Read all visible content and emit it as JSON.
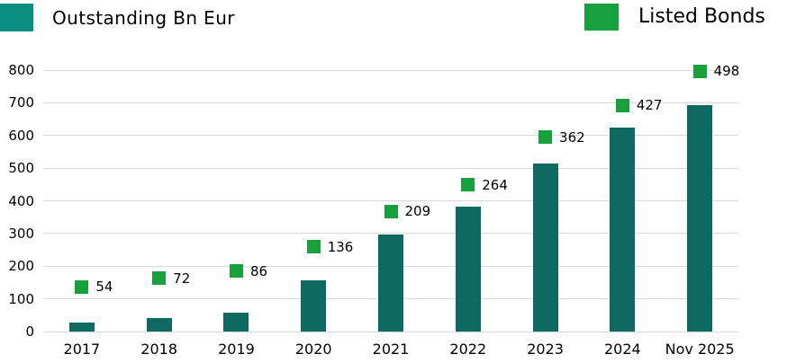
{
  "legend": {
    "outstanding": {
      "label": "Outstanding Bn Eur",
      "swatch_color": "#0b8f80"
    },
    "listed_bonds": {
      "label": "Listed Bonds",
      "swatch_color": "#18a03c"
    }
  },
  "colors": {
    "bar": "#0e6a60",
    "marker": "#18a03c",
    "grid": "#d9d9d9",
    "text": "#000000",
    "background": "#ffffff"
  },
  "chart_data": {
    "type": "bar",
    "title": "",
    "categories": [
      "2017",
      "2018",
      "2019",
      "2020",
      "2021",
      "2022",
      "2023",
      "2024",
      "Nov 2025"
    ],
    "series": [
      {
        "name": "Outstanding Bn Eur",
        "type": "bar",
        "color": "#0e6a60",
        "values": [
          27,
          40,
          57,
          158,
          297,
          381,
          515,
          625,
          693
        ],
        "values_estimated_from_pixels": true,
        "axis": "primary"
      },
      {
        "name": "Listed Bonds",
        "type": "point",
        "marker": "square",
        "color": "#18a03c",
        "values": [
          54,
          72,
          86,
          136,
          209,
          264,
          362,
          427,
          498
        ],
        "data_labels": true,
        "axis": "secondary"
      }
    ],
    "xlabel": "",
    "ylabel": "",
    "ylim": [
      0,
      800
    ],
    "yticks": [
      0,
      100,
      200,
      300,
      400,
      500,
      600,
      700,
      800
    ],
    "secondary_axis_range": [
      -38,
      500
    ],
    "grid": "horizontal",
    "legend_position": "top"
  }
}
